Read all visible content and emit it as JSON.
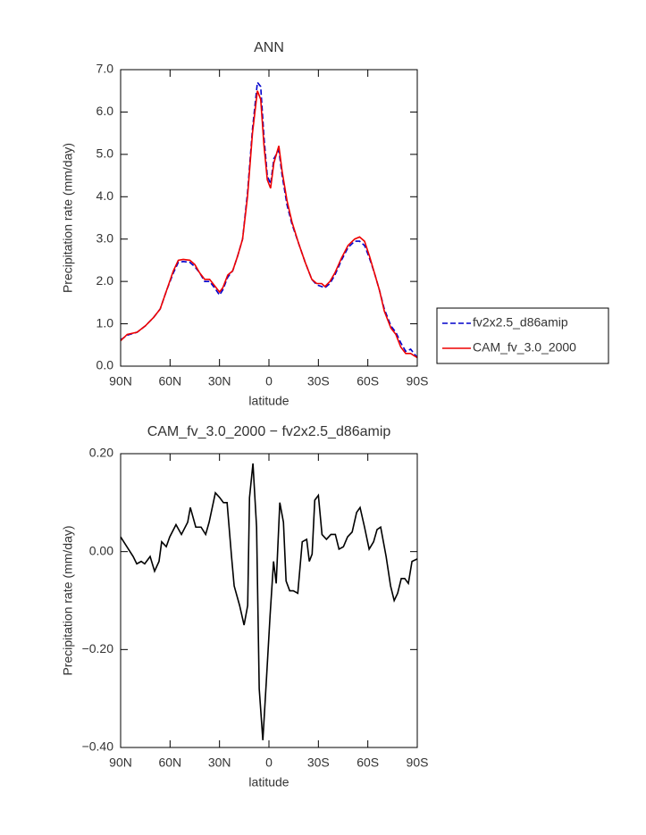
{
  "chart_data": [
    {
      "type": "line",
      "title": "ANN",
      "xlabel": "latitude",
      "ylabel": "Precipitation rate (mm/day)",
      "x": [
        90,
        86,
        80,
        75,
        70,
        66,
        62,
        58,
        55,
        52,
        48,
        45,
        42,
        39,
        36,
        33,
        30,
        28,
        25,
        22,
        19,
        16,
        13,
        10,
        7,
        5,
        3,
        1,
        -1,
        -3,
        -6,
        -8,
        -11,
        -14,
        -18,
        -22,
        -26,
        -29,
        -32,
        -34,
        -37,
        -40,
        -44,
        -48,
        -52,
        -55,
        -58,
        -61,
        -64,
        -67,
        -70,
        -74,
        -77,
        -80,
        -83,
        -86,
        -88,
        -90
      ],
      "series": [
        {
          "name": "fv2x2.5_d86amip",
          "color": "#0000cc",
          "linestyle": "dashed",
          "values": [
            0.62,
            0.73,
            0.8,
            0.95,
            1.15,
            1.35,
            1.8,
            2.2,
            2.45,
            2.47,
            2.45,
            2.35,
            2.2,
            2.0,
            2.0,
            1.85,
            1.68,
            1.8,
            2.1,
            2.25,
            2.6,
            3.0,
            4.1,
            5.6,
            6.7,
            6.6,
            5.4,
            4.5,
            4.3,
            4.9,
            5.1,
            4.5,
            3.8,
            3.35,
            2.9,
            2.45,
            2.05,
            1.92,
            1.88,
            1.85,
            1.95,
            2.15,
            2.5,
            2.8,
            2.95,
            2.95,
            2.85,
            2.55,
            2.2,
            1.8,
            1.35,
            0.95,
            0.8,
            0.55,
            0.35,
            0.4,
            0.3,
            0.2
          ]
        },
        {
          "name": "CAM_fv_3.0_2000",
          "color": "#ee0000",
          "linestyle": "solid",
          "values": [
            0.6,
            0.75,
            0.8,
            0.95,
            1.15,
            1.35,
            1.8,
            2.25,
            2.5,
            2.52,
            2.5,
            2.4,
            2.2,
            2.05,
            2.05,
            1.9,
            1.75,
            1.85,
            2.15,
            2.25,
            2.6,
            3.0,
            4.0,
            5.5,
            6.5,
            6.3,
            5.2,
            4.4,
            4.2,
            4.8,
            5.2,
            4.6,
            3.9,
            3.4,
            2.9,
            2.45,
            2.05,
            1.95,
            1.95,
            1.88,
            2.0,
            2.2,
            2.55,
            2.85,
            3.0,
            3.05,
            2.95,
            2.6,
            2.2,
            1.8,
            1.3,
            0.9,
            0.75,
            0.45,
            0.3,
            0.3,
            0.25,
            0.2
          ]
        }
      ],
      "xlim": [
        90,
        -90
      ],
      "xticks": [
        {
          "value": 90,
          "label": "90N"
        },
        {
          "value": 60,
          "label": "60N"
        },
        {
          "value": 30,
          "label": "30N"
        },
        0,
        {
          "value": -30,
          "label": "30S"
        },
        {
          "value": -60,
          "label": "60S"
        },
        {
          "value": -90,
          "label": "90S"
        }
      ],
      "ylim": [
        0,
        7
      ],
      "yticks": [
        {
          "value": 0,
          "label": "0.0"
        },
        {
          "value": 1,
          "label": "1.0"
        },
        {
          "value": 2,
          "label": "2.0"
        },
        {
          "value": 3,
          "label": "3.0"
        },
        {
          "value": 4,
          "label": "4.0"
        },
        {
          "value": 5,
          "label": "5.0"
        },
        {
          "value": 6,
          "label": "6.0"
        },
        {
          "value": 7,
          "label": "7.0"
        }
      ],
      "legend": "outside-right"
    },
    {
      "type": "line",
      "title": "CAM_fv_3.0_2000 − fv2x2.5_d86amip",
      "xlabel": "latitude",
      "ylabel": "Precipitation rate (mm/day)",
      "x": [
        90,
        86.2,
        82.4,
        80.2,
        77.5,
        75.4,
        72.1,
        69.4,
        66.7,
        65.1,
        62.3,
        60.2,
        56.4,
        53.1,
        49.3,
        47.7,
        44.4,
        41.2,
        38.4,
        36.3,
        32.5,
        29.8,
        27.6,
        25.4,
        22.7,
        21.1,
        17.8,
        15.1,
        12.9,
        11.8,
        9.7,
        7.5,
        5.9,
        3.7,
        1.5,
        -0.7,
        -2.8,
        -4.4,
        -6.6,
        -8.8,
        -10.4,
        -12.6,
        -14.8,
        -17.5,
        -20.2,
        -22.9,
        -24.5,
        -26.2,
        -27.8,
        -30.0,
        -32.2,
        -34.9,
        -37.6,
        -40.3,
        -42.5,
        -45.2,
        -47.7,
        -50.5,
        -53.2,
        -55.3,
        -58.0,
        -60.8,
        -63.5,
        -65.6,
        -67.8,
        -71.1,
        -73.8,
        -76.0,
        -78.1,
        -80.3,
        -82.4,
        -84.6,
        -86.8,
        -90
      ],
      "series": [
        {
          "name": "CAM_fv_3.0_2000 − fv2x2.5_d86amip",
          "color": "#000000",
          "linestyle": "solid",
          "values": [
            0.03,
            0.01,
            -0.01,
            -0.025,
            -0.02,
            -0.025,
            -0.01,
            -0.04,
            -0.02,
            0.02,
            0.01,
            0.03,
            0.055,
            0.035,
            0.06,
            0.09,
            0.05,
            0.05,
            0.035,
            0.06,
            0.12,
            0.11,
            0.1,
            0.1,
            -0.01,
            -0.07,
            -0.11,
            -0.15,
            -0.11,
            0.11,
            0.18,
            0.05,
            -0.28,
            -0.385,
            -0.26,
            -0.13,
            -0.02,
            -0.065,
            0.1,
            0.06,
            -0.06,
            -0.08,
            -0.08,
            -0.085,
            0.02,
            0.025,
            -0.02,
            -0.005,
            0.105,
            0.115,
            0.035,
            0.025,
            0.035,
            0.035,
            0.005,
            0.01,
            0.03,
            0.04,
            0.08,
            0.09,
            0.05,
            0.005,
            0.02,
            0.045,
            0.05,
            -0.01,
            -0.07,
            -0.1,
            -0.085,
            -0.055,
            -0.055,
            -0.065,
            -0.02,
            -0.015
          ]
        }
      ],
      "xlim": [
        90,
        -90
      ],
      "xticks": [
        {
          "value": 90,
          "label": "90N"
        },
        {
          "value": 60,
          "label": "60N"
        },
        {
          "value": 30,
          "label": "30N"
        },
        0,
        {
          "value": -30,
          "label": "30S"
        },
        {
          "value": -60,
          "label": "60S"
        },
        {
          "value": -90,
          "label": "90S"
        }
      ],
      "ylim": [
        -0.4,
        0.2
      ],
      "yticks": [
        {
          "value": -0.4,
          "label": "−0.40"
        },
        {
          "value": -0.2,
          "label": "−0.20"
        },
        {
          "value": 0,
          "label": "0.00"
        },
        {
          "value": 0.2,
          "label": "0.20"
        }
      ]
    }
  ]
}
